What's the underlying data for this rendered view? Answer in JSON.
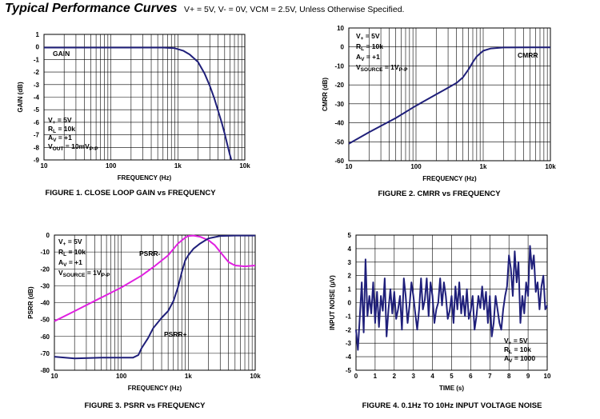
{
  "header": {
    "title": "Typical Performance Curves",
    "conditions": "V+ = 5V, V- = 0V, VCM = 2.5V, Unless Otherwise Specified."
  },
  "colors": {
    "blue": "#1f1f7a",
    "magenta": "#e020e0",
    "grid": "#000000"
  },
  "chart_data": [
    {
      "id": "fig1",
      "type": "line",
      "caption": "FIGURE 1.  CLOSE LOOP GAIN vs FREQUENCY",
      "xlabel": "FREQUENCY (Hz)",
      "ylabel": "GAIN (dB)",
      "xscale": "log",
      "xlim": [
        10,
        10000
      ],
      "ylim": [
        -9,
        1
      ],
      "xticks": [
        10,
        100,
        1000,
        10000
      ],
      "xticklabels": [
        "10",
        "100",
        "1k",
        "10k"
      ],
      "yticks": [
        1,
        0,
        -1,
        -2,
        -3,
        -4,
        -5,
        -6,
        -7,
        -8,
        -9
      ],
      "notes": [
        {
          "base": "V",
          "sub": "+",
          "rest": " = 5V"
        },
        {
          "base": "R",
          "sub": "L",
          "rest": " = 10k"
        },
        {
          "base": "A",
          "sub": "V",
          "rest": " = +1"
        },
        {
          "base": "V",
          "sub": "OUT",
          "rest": " = 10mV",
          "sub2": "P-P"
        }
      ],
      "labels": [
        {
          "text": "GAIN"
        }
      ],
      "series": [
        {
          "name": "GAIN",
          "color": "#1f1f7a",
          "x": [
            10,
            30,
            100,
            300,
            600,
            900,
            1200,
            1500,
            2000,
            2500,
            3000,
            3500,
            4000,
            4500,
            5000,
            5500,
            6000,
            6300
          ],
          "y": [
            -0.05,
            -0.05,
            -0.05,
            -0.05,
            -0.05,
            -0.1,
            -0.3,
            -0.6,
            -1.2,
            -2.1,
            -3.1,
            -4.1,
            -5.1,
            -6.0,
            -6.9,
            -7.8,
            -8.6,
            -9.0
          ]
        }
      ]
    },
    {
      "id": "fig2",
      "type": "line",
      "caption": "FIGURE 2.  CMRR vs FREQUENCY",
      "xlabel": "FREQUENCY (Hz)",
      "ylabel": "CMRR (dB)",
      "xscale": "log",
      "xlim": [
        10,
        10000
      ],
      "ylim": [
        -60,
        10
      ],
      "xticks": [
        10,
        100,
        1000,
        10000
      ],
      "xticklabels": [
        "10",
        "100",
        "1k",
        "10k"
      ],
      "yticks": [
        10,
        0,
        -10,
        -20,
        -30,
        -40,
        -50,
        -60
      ],
      "notes": [
        {
          "base": "V",
          "sub": "+",
          "rest": " = 5V"
        },
        {
          "base": "R",
          "sub": "L",
          "rest": " = 10k"
        },
        {
          "base": "A",
          "sub": "V",
          "rest": " = +1"
        },
        {
          "base": "V",
          "sub": "SOURCE",
          "rest": " = 1V",
          "sub2": "P-P"
        }
      ],
      "labels": [
        {
          "text": "CMRR"
        }
      ],
      "series": [
        {
          "name": "CMRR",
          "color": "#1f1f7a",
          "x": [
            10,
            20,
            50,
            100,
            200,
            300,
            400,
            500,
            600,
            700,
            800,
            1000,
            1300,
            2000,
            5000,
            10000
          ],
          "y": [
            -51,
            -45,
            -37.5,
            -31,
            -25,
            -21.5,
            -19,
            -16,
            -12,
            -8,
            -5,
            -2,
            -0.8,
            -0.3,
            -0.2,
            -0.2
          ]
        }
      ]
    },
    {
      "id": "fig3",
      "type": "line",
      "caption": "FIGURE 3.  PSRR vs FREQUENCY",
      "xlabel": "FREQUENCY (Hz)",
      "ylabel": "PSRR (dB)",
      "xscale": "log",
      "xlim": [
        10,
        10000
      ],
      "ylim": [
        -80,
        0
      ],
      "xticks": [
        10,
        100,
        1000,
        10000
      ],
      "xticklabels": [
        "10",
        "100",
        "1k",
        "10k"
      ],
      "yticks": [
        0,
        -10,
        -20,
        -30,
        -40,
        -50,
        -60,
        -70,
        -80
      ],
      "notes": [
        {
          "base": "V",
          "sub": "+",
          "rest": " = 5V"
        },
        {
          "base": "R",
          "sub": "L",
          "rest": " = 10k"
        },
        {
          "base": "A",
          "sub": "V",
          "rest": " = +1"
        },
        {
          "base": "V",
          "sub": "SOURCE",
          "rest": " = 1V",
          "sub2": "P-P"
        }
      ],
      "labels": [
        {
          "text": "PSRR-"
        },
        {
          "text": "PSRR+"
        }
      ],
      "series": [
        {
          "name": "PSRR-",
          "color": "#e020e0",
          "x": [
            10,
            20,
            50,
            100,
            200,
            300,
            500,
            700,
            900,
            1000,
            1200,
            1500,
            2000,
            2500,
            3000,
            4000,
            5000,
            7000,
            10000
          ],
          "y": [
            -51,
            -45,
            -37,
            -31,
            -24,
            -19,
            -12,
            -5,
            -1.5,
            -0.5,
            -0.3,
            -1,
            -3,
            -6,
            -10,
            -16,
            -18,
            -18.5,
            -18
          ]
        },
        {
          "name": "PSRR+",
          "color": "#1f1f7a",
          "x": [
            10,
            20,
            50,
            100,
            150,
            180,
            200,
            250,
            300,
            400,
            500,
            600,
            700,
            800,
            900,
            1000,
            1200,
            1500,
            2000,
            3000,
            5000,
            10000
          ],
          "y": [
            -72,
            -73,
            -72.5,
            -72.5,
            -72.5,
            -71,
            -67,
            -61,
            -55,
            -49,
            -45,
            -39,
            -31,
            -22,
            -15,
            -12,
            -8,
            -5,
            -2,
            -0.5,
            -0.3,
            -0.3
          ]
        }
      ]
    },
    {
      "id": "fig4",
      "type": "line",
      "caption": "FIGURE 4.  0.1Hz TO 10Hz INPUT VOLTAGE NOISE",
      "xlabel": "TIME (s)",
      "ylabel": "INPUT NOISE (µV)",
      "xscale": "linear",
      "xlim": [
        0,
        10
      ],
      "ylim": [
        -5,
        5
      ],
      "xticks": [
        0,
        1,
        2,
        3,
        4,
        5,
        6,
        7,
        8,
        9,
        10
      ],
      "xticklabels": [
        "0",
        "1",
        "2",
        "3",
        "4",
        "5",
        "6",
        "7",
        "8",
        "9",
        "10"
      ],
      "yticks": [
        5,
        4,
        3,
        2,
        1,
        0,
        -1,
        -2,
        -3,
        -4,
        -5
      ],
      "notes": [
        {
          "base": "V",
          "sub": "+",
          "rest": " = 5V"
        },
        {
          "base": "R",
          "sub": "L",
          "rest": " = 10k"
        },
        {
          "base": "A",
          "sub": "V",
          "rest": " = 1000"
        }
      ],
      "labels": [],
      "series": [
        {
          "name": "noise",
          "color": "#1f1f7a",
          "x": [
            0,
            0.1,
            0.2,
            0.3,
            0.4,
            0.5,
            0.6,
            0.7,
            0.8,
            0.9,
            1.0,
            1.1,
            1.2,
            1.3,
            1.4,
            1.5,
            1.6,
            1.7,
            1.8,
            1.9,
            2.0,
            2.1,
            2.2,
            2.3,
            2.4,
            2.5,
            2.6,
            2.7,
            2.8,
            2.9,
            3.0,
            3.1,
            3.2,
            3.3,
            3.4,
            3.5,
            3.6,
            3.7,
            3.8,
            3.9,
            4.0,
            4.1,
            4.2,
            4.3,
            4.4,
            4.5,
            4.6,
            4.7,
            4.8,
            4.9,
            5.0,
            5.1,
            5.2,
            5.3,
            5.4,
            5.5,
            5.6,
            5.7,
            5.8,
            5.9,
            6.0,
            6.1,
            6.2,
            6.3,
            6.4,
            6.5,
            6.6,
            6.7,
            6.8,
            6.9,
            7.0,
            7.1,
            7.2,
            7.3,
            7.4,
            7.5,
            7.6,
            7.7,
            7.8,
            7.9,
            8.0,
            8.1,
            8.2,
            8.3,
            8.4,
            8.5,
            8.6,
            8.7,
            8.8,
            8.9,
            9.0,
            9.1,
            9.2,
            9.3,
            9.4,
            9.5,
            9.6,
            9.7,
            9.8,
            9.9,
            10.0
          ],
          "y": [
            -2.0,
            -3.5,
            -1.0,
            1.5,
            -2.2,
            3.2,
            -1.0,
            0.5,
            -0.8,
            1.5,
            -1.5,
            0.8,
            -1.8,
            0.5,
            -0.6,
            1.8,
            -2.5,
            -0.5,
            1.0,
            -0.8,
            0.8,
            -1.2,
            -0.5,
            0.5,
            -2.0,
            1.8,
            0.5,
            -1.5,
            -0.2,
            1.5,
            0.5,
            -0.8,
            -2.0,
            -0.5,
            1.8,
            -0.5,
            0.2,
            1.8,
            -1.0,
            1.5,
            0.5,
            -1.5,
            -0.5,
            0.0,
            1.8,
            -0.2,
            1.5,
            0.5,
            -1.2,
            -0.6,
            0.5,
            -1.5,
            1.2,
            -0.5,
            1.5,
            -0.8,
            0.5,
            -1.0,
            1.0,
            -1.2,
            -0.6,
            0.5,
            -2.0,
            -1.0,
            0.5,
            -0.4,
            1.2,
            -0.5,
            0.8,
            -1.5,
            0.5,
            -2.5,
            -1.5,
            0.5,
            -0.5,
            -1.5,
            -2.0,
            -0.5,
            0.5,
            1.2,
            3.5,
            2.5,
            0.5,
            3.8,
            1.5,
            3.0,
            -1.5,
            0.5,
            -0.8,
            1.5,
            0.5,
            4.2,
            2.5,
            3.5,
            0.8,
            1.5,
            -0.5,
            1.2,
            2.0,
            -0.5,
            -0.2
          ]
        }
      ]
    }
  ]
}
